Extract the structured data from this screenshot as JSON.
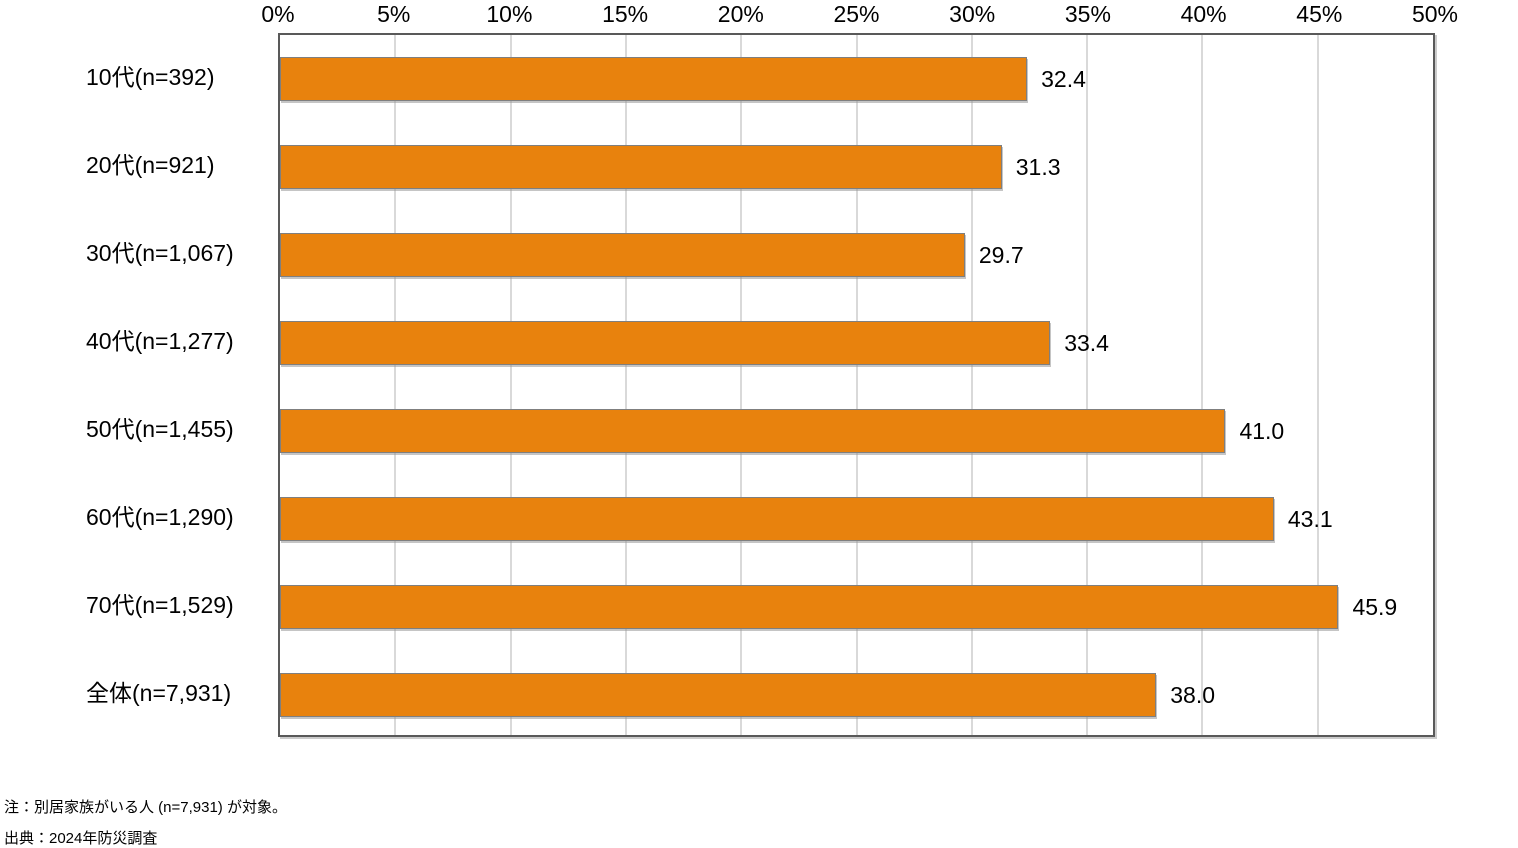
{
  "chart_data": {
    "type": "bar",
    "orientation": "horizontal",
    "categories": [
      "10代(n=392)",
      "20代(n=921)",
      "30代(n=1,067)",
      "40代(n=1,277)",
      "50代(n=1,455)",
      "60代(n=1,290)",
      "70代(n=1,529)",
      "全体(n=7,931)"
    ],
    "values": [
      32.4,
      31.3,
      29.7,
      33.4,
      41.0,
      43.1,
      45.9,
      38.0
    ],
    "value_labels": [
      "32.4",
      "31.3",
      "29.7",
      "33.4",
      "41.0",
      "43.1",
      "45.9",
      "38.0"
    ],
    "title": "",
    "xlabel": "",
    "ylabel": "",
    "xlim": [
      0,
      50
    ],
    "x_tick_labels": [
      "0%",
      "5%",
      "10%",
      "15%",
      "20%",
      "25%",
      "30%",
      "35%",
      "40%",
      "45%",
      "50%"
    ],
    "grid": true,
    "axis_position": "top",
    "bar_color": "#e8820d",
    "bar_border_color": "#7f7f7f",
    "gridline_color": "#d9d9d9",
    "frame_color": "#595959",
    "legend": null
  },
  "notes": {
    "note1": "注：別居家族がいる人 (n=7,931) が対象。",
    "note2": "出典：2024年防災調査"
  }
}
